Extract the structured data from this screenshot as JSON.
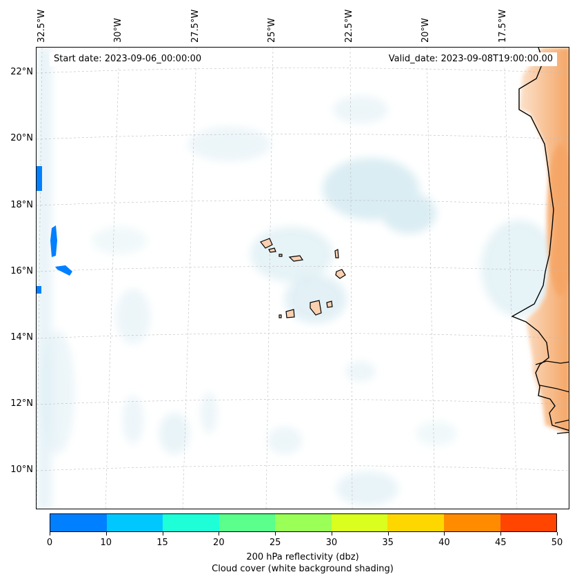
{
  "map": {
    "start_date": "Start date: 2023-09-06_00:00:00",
    "valid_date": "Valid_date: 2023-09-08T19:00:00.00",
    "lon_labels": [
      "32.5°W",
      "30°W",
      "27.5°W",
      "25°W",
      "22.5°W",
      "20°W",
      "17.5°W"
    ],
    "lat_labels": [
      "22°N",
      "20°N",
      "18°N",
      "16°N",
      "14°N",
      "12°N",
      "10°N"
    ],
    "colors": {
      "cloud": "#d4eaf1",
      "cloud_dark": "#bfe0ea",
      "land_heat": "#f5a463",
      "land_light": "#fbd9bd",
      "coast": "#000000",
      "gridline": "#bbbbbb"
    }
  },
  "colorbar": {
    "ticks": [
      "0",
      "10",
      "15",
      "20",
      "25",
      "30",
      "35",
      "40",
      "45",
      "50"
    ],
    "colors": [
      "#0080ff",
      "#00c8ff",
      "#1effd8",
      "#5aff8c",
      "#9aff56",
      "#daff1e",
      "#ffd700",
      "#ff8c00",
      "#ff4500"
    ],
    "label_line1": "200 hPa reflectivity (dbz)",
    "label_line2": "Cloud cover (white background shading)"
  }
}
